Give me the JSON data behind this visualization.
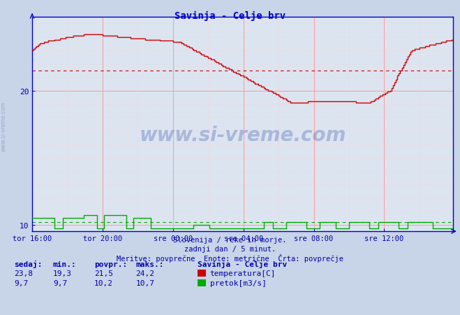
{
  "title": "Savinja - Celje brv",
  "title_color": "#0000cc",
  "bg_color": "#c8d4e8",
  "plot_bg_color": "#dce4f0",
  "grid_color_major": "#ff9999",
  "grid_color_minor": "#ffcccc",
  "axis_color": "#0000cc",
  "xlabel_color": "#0000aa",
  "text_color": "#0000aa",
  "temp_color": "#cc0000",
  "flow_color": "#00aa00",
  "avg_temp_color": "#cc0000",
  "avg_flow_color": "#00aa00",
  "ylim": [
    9.5,
    25.5
  ],
  "yticks": [
    10,
    20
  ],
  "xlabel_ticks": [
    "tor 16:00",
    "tor 20:00",
    "sre 00:00",
    "sre 04:00",
    "sre 08:00",
    "sre 12:00"
  ],
  "num_points": 288,
  "avg_temp": 21.5,
  "avg_flow": 10.2,
  "min_temp": 19.3,
  "max_temp": 24.2,
  "curr_temp": 23.8,
  "min_flow": 9.7,
  "max_flow": 10.7,
  "curr_flow": 9.7,
  "watermark": "www.si-vreme.com",
  "footer_line1": "Slovenija / reke in morje.",
  "footer_line2": "zadnji dan / 5 minut.",
  "footer_line3": "Meritve: povprečne  Enote: metrične  Črta: povprečje",
  "legend_title": "Savinja - Celje brv",
  "legend_temp": "temperatura[C]",
  "legend_flow": "pretok[m3/s]",
  "label_sedaj": "sedaj:",
  "label_min": "min.:",
  "label_povpr": "povpr.:",
  "label_maks": "maks.:"
}
